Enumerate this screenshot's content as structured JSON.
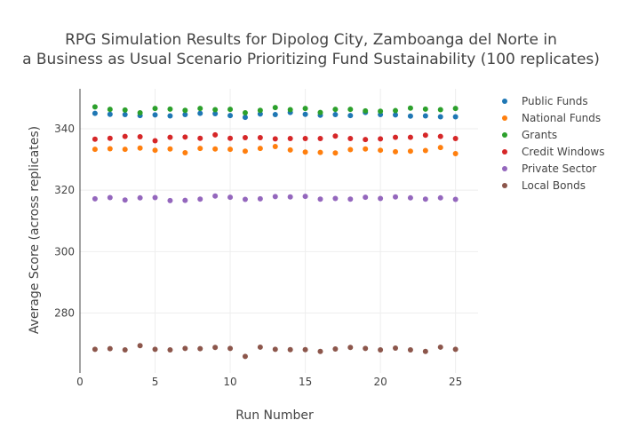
{
  "chart_data": {
    "type": "scatter",
    "title_lines": [
      "RPG Simulation Results for Dipolog City, Zamboanga del Norte in",
      "a Business as Usual Scenario Prioritizing Fund Sustainability (100 replicates)"
    ],
    "xlabel": "Run Number",
    "ylabel": "Average Score (across replicates)",
    "xlim": [
      0,
      26.5
    ],
    "ylim": [
      260.5,
      353
    ],
    "xticks": [
      0,
      5,
      10,
      15,
      20,
      25
    ],
    "yticks": [
      280,
      300,
      320,
      340
    ],
    "grid": true,
    "legend_position": "top-right",
    "x": [
      1,
      2,
      3,
      4,
      5,
      6,
      7,
      8,
      9,
      10,
      11,
      12,
      13,
      14,
      15,
      16,
      17,
      18,
      19,
      20,
      21,
      22,
      23,
      24,
      25
    ],
    "series": [
      {
        "name": "Public Funds",
        "color": "#1f77b4",
        "values": [
          345.0,
          344.7,
          344.6,
          344.3,
          344.5,
          344.2,
          344.6,
          345.0,
          344.9,
          344.3,
          343.7,
          344.8,
          344.6,
          345.3,
          344.7,
          344.4,
          344.6,
          344.3,
          345.3,
          344.6,
          344.5,
          344.1,
          344.2,
          343.9,
          343.9
        ]
      },
      {
        "name": "National Funds",
        "color": "#ff7f0e",
        "values": [
          333.3,
          333.5,
          333.3,
          333.7,
          333.0,
          333.4,
          332.2,
          333.6,
          333.4,
          333.3,
          332.7,
          333.6,
          334.2,
          333.1,
          332.4,
          332.3,
          332.1,
          333.2,
          333.4,
          333.0,
          332.5,
          332.7,
          332.9,
          333.9,
          331.9
        ]
      },
      {
        "name": "Grants",
        "color": "#2ca02c",
        "values": [
          347.1,
          346.3,
          346.1,
          345.2,
          346.6,
          346.4,
          346.0,
          346.6,
          346.2,
          346.3,
          345.2,
          346.0,
          346.9,
          346.2,
          346.6,
          345.3,
          346.3,
          346.3,
          345.8,
          345.7,
          345.9,
          346.7,
          346.4,
          346.2,
          346.6
        ]
      },
      {
        "name": "Credit Windows",
        "color": "#d62728",
        "values": [
          336.6,
          336.9,
          337.5,
          337.4,
          336.1,
          337.2,
          337.3,
          336.9,
          338.0,
          336.9,
          337.1,
          337.1,
          336.7,
          336.8,
          336.8,
          336.8,
          337.6,
          336.8,
          336.5,
          336.7,
          337.2,
          337.2,
          337.9,
          337.5,
          336.8
        ]
      },
      {
        "name": "Private Sector",
        "color": "#9467bd",
        "values": [
          317.2,
          317.6,
          316.8,
          317.5,
          317.6,
          316.6,
          316.7,
          317.1,
          318.1,
          317.7,
          317.0,
          317.2,
          317.9,
          317.8,
          318.0,
          317.1,
          317.3,
          317.1,
          317.7,
          317.3,
          317.8,
          317.5,
          317.1,
          317.5,
          317.0
        ]
      },
      {
        "name": "Local Bonds",
        "color": "#8c564b",
        "values": [
          268.2,
          268.4,
          268.0,
          269.4,
          268.2,
          268.0,
          268.5,
          268.4,
          268.8,
          268.5,
          265.9,
          268.9,
          268.2,
          268.1,
          268.1,
          267.5,
          268.3,
          268.8,
          268.5,
          268.0,
          268.6,
          268.0,
          267.5,
          268.9,
          268.2
        ]
      }
    ]
  }
}
